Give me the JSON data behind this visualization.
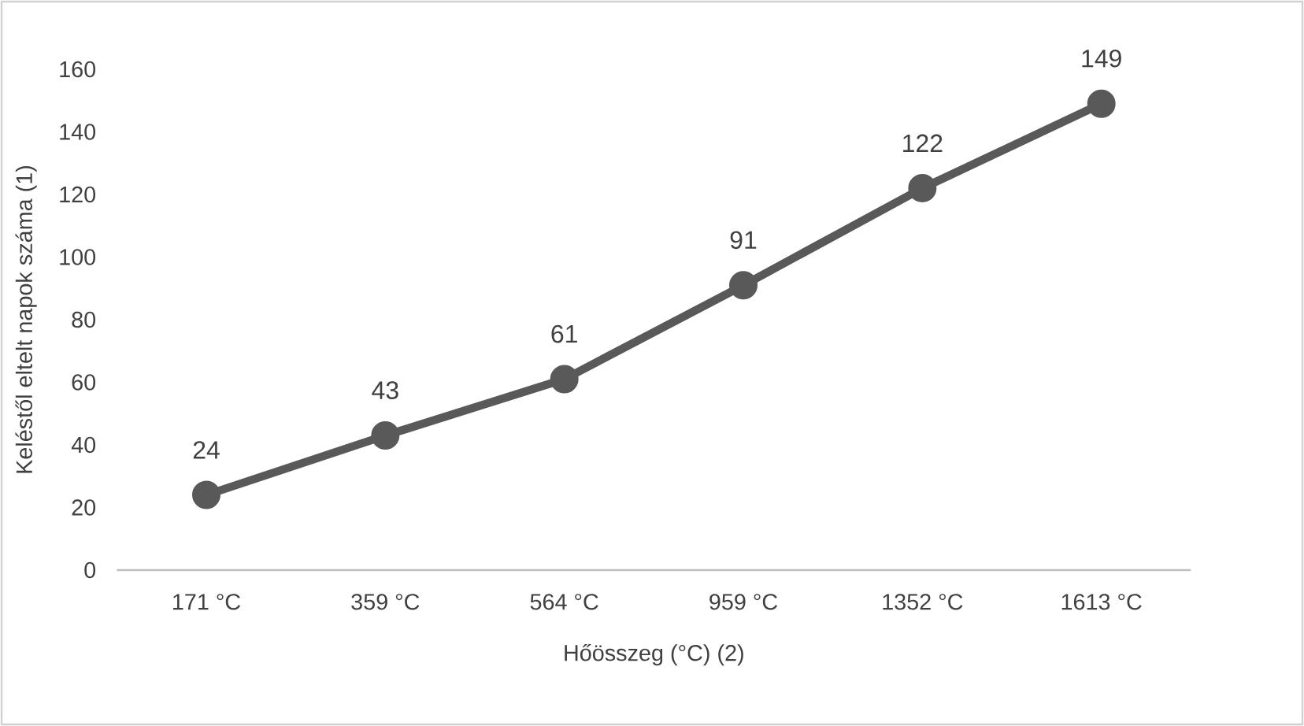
{
  "chart_data": {
    "type": "line",
    "xlabel": "Hőösszeg (°C) (2)",
    "ylabel": "Keléstől eltelt napok száma (1)",
    "categories": [
      "171 °C",
      "359 °C",
      "564 °C",
      "959 °C",
      "1352 °C",
      "1613 °C"
    ],
    "values": [
      24,
      43,
      61,
      91,
      122,
      149
    ],
    "color": "#595959",
    "ylim": [
      0,
      160
    ],
    "yticks": [
      0,
      20,
      40,
      60,
      80,
      100,
      120,
      140,
      160
    ],
    "data_labels": true,
    "marker": "circle",
    "line_style": "solid"
  }
}
